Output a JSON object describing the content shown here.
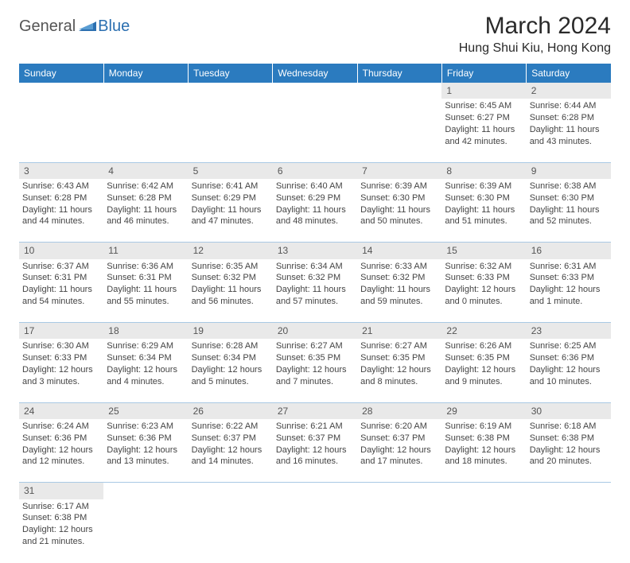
{
  "logo": {
    "text_general": "General",
    "text_blue": "Blue"
  },
  "title": "March 2024",
  "location": "Hung Shui Kiu, Hong Kong",
  "colors": {
    "header_bg": "#2b7bbf",
    "header_text": "#ffffff",
    "daynum_bg": "#e9e9e9",
    "cell_border": "#a9c9e4",
    "logo_blue": "#2b6fb0"
  },
  "weekdays": [
    "Sunday",
    "Monday",
    "Tuesday",
    "Wednesday",
    "Thursday",
    "Friday",
    "Saturday"
  ],
  "weeks": [
    [
      null,
      null,
      null,
      null,
      null,
      {
        "day": "1",
        "sunrise": "Sunrise: 6:45 AM",
        "sunset": "Sunset: 6:27 PM",
        "daylight": "Daylight: 11 hours and 42 minutes."
      },
      {
        "day": "2",
        "sunrise": "Sunrise: 6:44 AM",
        "sunset": "Sunset: 6:28 PM",
        "daylight": "Daylight: 11 hours and 43 minutes."
      }
    ],
    [
      {
        "day": "3",
        "sunrise": "Sunrise: 6:43 AM",
        "sunset": "Sunset: 6:28 PM",
        "daylight": "Daylight: 11 hours and 44 minutes."
      },
      {
        "day": "4",
        "sunrise": "Sunrise: 6:42 AM",
        "sunset": "Sunset: 6:28 PM",
        "daylight": "Daylight: 11 hours and 46 minutes."
      },
      {
        "day": "5",
        "sunrise": "Sunrise: 6:41 AM",
        "sunset": "Sunset: 6:29 PM",
        "daylight": "Daylight: 11 hours and 47 minutes."
      },
      {
        "day": "6",
        "sunrise": "Sunrise: 6:40 AM",
        "sunset": "Sunset: 6:29 PM",
        "daylight": "Daylight: 11 hours and 48 minutes."
      },
      {
        "day": "7",
        "sunrise": "Sunrise: 6:39 AM",
        "sunset": "Sunset: 6:30 PM",
        "daylight": "Daylight: 11 hours and 50 minutes."
      },
      {
        "day": "8",
        "sunrise": "Sunrise: 6:39 AM",
        "sunset": "Sunset: 6:30 PM",
        "daylight": "Daylight: 11 hours and 51 minutes."
      },
      {
        "day": "9",
        "sunrise": "Sunrise: 6:38 AM",
        "sunset": "Sunset: 6:30 PM",
        "daylight": "Daylight: 11 hours and 52 minutes."
      }
    ],
    [
      {
        "day": "10",
        "sunrise": "Sunrise: 6:37 AM",
        "sunset": "Sunset: 6:31 PM",
        "daylight": "Daylight: 11 hours and 54 minutes."
      },
      {
        "day": "11",
        "sunrise": "Sunrise: 6:36 AM",
        "sunset": "Sunset: 6:31 PM",
        "daylight": "Daylight: 11 hours and 55 minutes."
      },
      {
        "day": "12",
        "sunrise": "Sunrise: 6:35 AM",
        "sunset": "Sunset: 6:32 PM",
        "daylight": "Daylight: 11 hours and 56 minutes."
      },
      {
        "day": "13",
        "sunrise": "Sunrise: 6:34 AM",
        "sunset": "Sunset: 6:32 PM",
        "daylight": "Daylight: 11 hours and 57 minutes."
      },
      {
        "day": "14",
        "sunrise": "Sunrise: 6:33 AM",
        "sunset": "Sunset: 6:32 PM",
        "daylight": "Daylight: 11 hours and 59 minutes."
      },
      {
        "day": "15",
        "sunrise": "Sunrise: 6:32 AM",
        "sunset": "Sunset: 6:33 PM",
        "daylight": "Daylight: 12 hours and 0 minutes."
      },
      {
        "day": "16",
        "sunrise": "Sunrise: 6:31 AM",
        "sunset": "Sunset: 6:33 PM",
        "daylight": "Daylight: 12 hours and 1 minute."
      }
    ],
    [
      {
        "day": "17",
        "sunrise": "Sunrise: 6:30 AM",
        "sunset": "Sunset: 6:33 PM",
        "daylight": "Daylight: 12 hours and 3 minutes."
      },
      {
        "day": "18",
        "sunrise": "Sunrise: 6:29 AM",
        "sunset": "Sunset: 6:34 PM",
        "daylight": "Daylight: 12 hours and 4 minutes."
      },
      {
        "day": "19",
        "sunrise": "Sunrise: 6:28 AM",
        "sunset": "Sunset: 6:34 PM",
        "daylight": "Daylight: 12 hours and 5 minutes."
      },
      {
        "day": "20",
        "sunrise": "Sunrise: 6:27 AM",
        "sunset": "Sunset: 6:35 PM",
        "daylight": "Daylight: 12 hours and 7 minutes."
      },
      {
        "day": "21",
        "sunrise": "Sunrise: 6:27 AM",
        "sunset": "Sunset: 6:35 PM",
        "daylight": "Daylight: 12 hours and 8 minutes."
      },
      {
        "day": "22",
        "sunrise": "Sunrise: 6:26 AM",
        "sunset": "Sunset: 6:35 PM",
        "daylight": "Daylight: 12 hours and 9 minutes."
      },
      {
        "day": "23",
        "sunrise": "Sunrise: 6:25 AM",
        "sunset": "Sunset: 6:36 PM",
        "daylight": "Daylight: 12 hours and 10 minutes."
      }
    ],
    [
      {
        "day": "24",
        "sunrise": "Sunrise: 6:24 AM",
        "sunset": "Sunset: 6:36 PM",
        "daylight": "Daylight: 12 hours and 12 minutes."
      },
      {
        "day": "25",
        "sunrise": "Sunrise: 6:23 AM",
        "sunset": "Sunset: 6:36 PM",
        "daylight": "Daylight: 12 hours and 13 minutes."
      },
      {
        "day": "26",
        "sunrise": "Sunrise: 6:22 AM",
        "sunset": "Sunset: 6:37 PM",
        "daylight": "Daylight: 12 hours and 14 minutes."
      },
      {
        "day": "27",
        "sunrise": "Sunrise: 6:21 AM",
        "sunset": "Sunset: 6:37 PM",
        "daylight": "Daylight: 12 hours and 16 minutes."
      },
      {
        "day": "28",
        "sunrise": "Sunrise: 6:20 AM",
        "sunset": "Sunset: 6:37 PM",
        "daylight": "Daylight: 12 hours and 17 minutes."
      },
      {
        "day": "29",
        "sunrise": "Sunrise: 6:19 AM",
        "sunset": "Sunset: 6:38 PM",
        "daylight": "Daylight: 12 hours and 18 minutes."
      },
      {
        "day": "30",
        "sunrise": "Sunrise: 6:18 AM",
        "sunset": "Sunset: 6:38 PM",
        "daylight": "Daylight: 12 hours and 20 minutes."
      }
    ],
    [
      {
        "day": "31",
        "sunrise": "Sunrise: 6:17 AM",
        "sunset": "Sunset: 6:38 PM",
        "daylight": "Daylight: 12 hours and 21 minutes."
      },
      null,
      null,
      null,
      null,
      null,
      null
    ]
  ]
}
